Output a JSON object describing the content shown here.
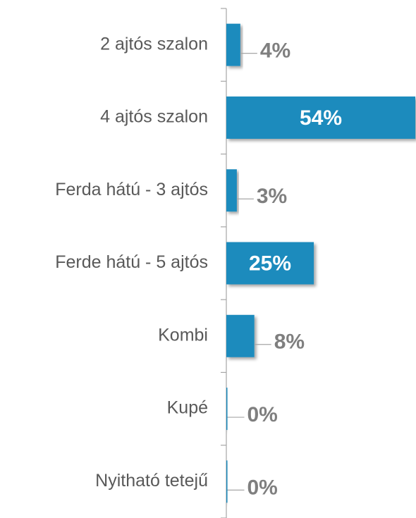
{
  "chart_data": {
    "type": "hbar",
    "categories": [
      "2 ajtós szalon",
      "4 ajtós szalon",
      "Ferda hátú - 3 ajtós",
      "Ferde hátú - 5 ajtós",
      "Kombi",
      "Kupé",
      "Nyitható tetejű"
    ],
    "values": [
      4,
      54,
      3,
      25,
      8,
      0,
      0
    ],
    "value_labels": [
      "4%",
      "54%",
      "3%",
      "25%",
      "8%",
      "0%",
      "0%"
    ],
    "color": "#1b8bbd",
    "xlim": [
      0,
      54
    ]
  }
}
